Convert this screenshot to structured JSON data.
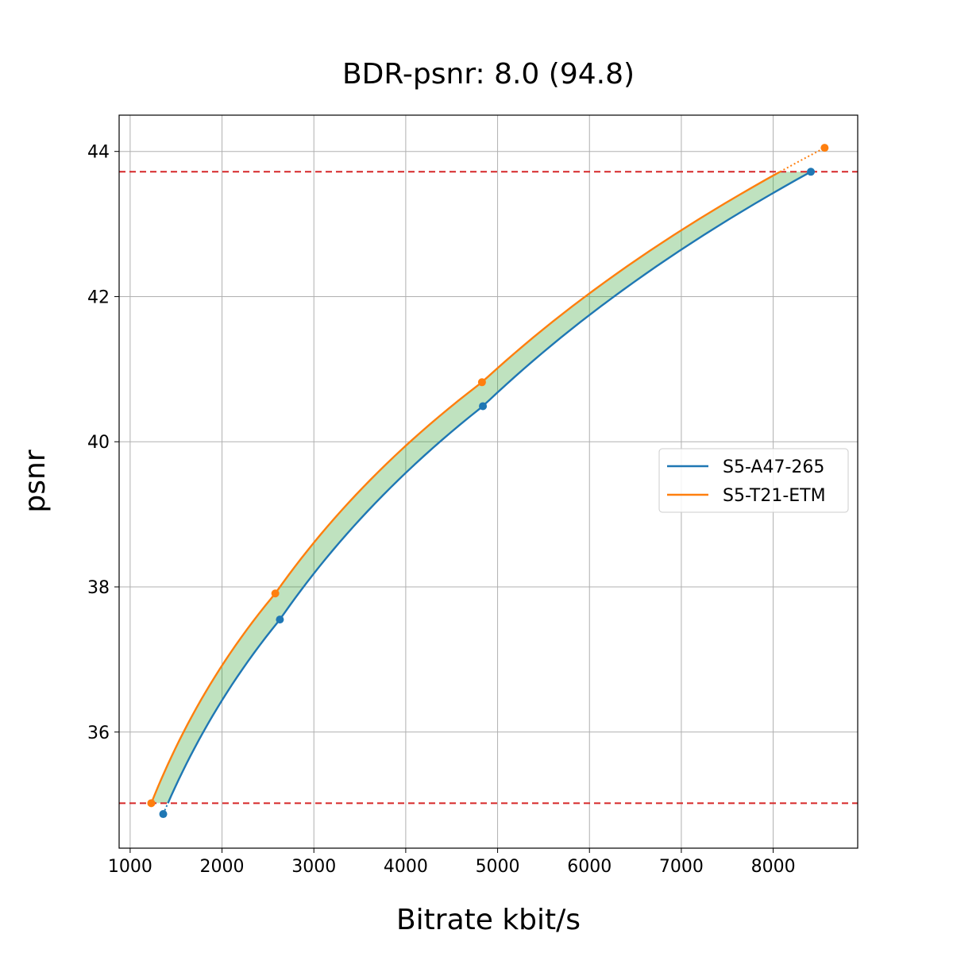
{
  "chart_data": {
    "type": "line",
    "title": "BDR-psnr: 8.0 (94.8)",
    "xlabel": "Bitrate kbit/s",
    "ylabel": "psnr",
    "xlim": [
      880,
      8920
    ],
    "ylim": [
      34.4,
      44.5
    ],
    "xticks": [
      1000,
      2000,
      3000,
      4000,
      5000,
      6000,
      7000,
      8000
    ],
    "yticks": [
      36,
      38,
      40,
      42,
      44
    ],
    "grid": true,
    "legend_position": "center-right",
    "hlines": [
      {
        "y": 43.72,
        "color": "#d62728",
        "style": "dashed"
      },
      {
        "y": 35.02,
        "color": "#d62728",
        "style": "dashed"
      }
    ],
    "fill_between": {
      "color": "#2ca02c",
      "alpha": 0.3,
      "y_range": [
        35.02,
        43.72
      ]
    },
    "series": [
      {
        "name": "S5-A47-265",
        "color": "#1f77b4",
        "points": [
          [
            1360,
            34.87
          ],
          [
            2630,
            37.55
          ],
          [
            4840,
            40.49
          ],
          [
            8410,
            43.72
          ]
        ]
      },
      {
        "name": "S5-T21-ETM",
        "color": "#ff7f0e",
        "points": [
          [
            1230,
            35.02
          ],
          [
            2580,
            37.91
          ],
          [
            4830,
            40.82
          ],
          [
            8560,
            44.05
          ]
        ]
      }
    ]
  }
}
